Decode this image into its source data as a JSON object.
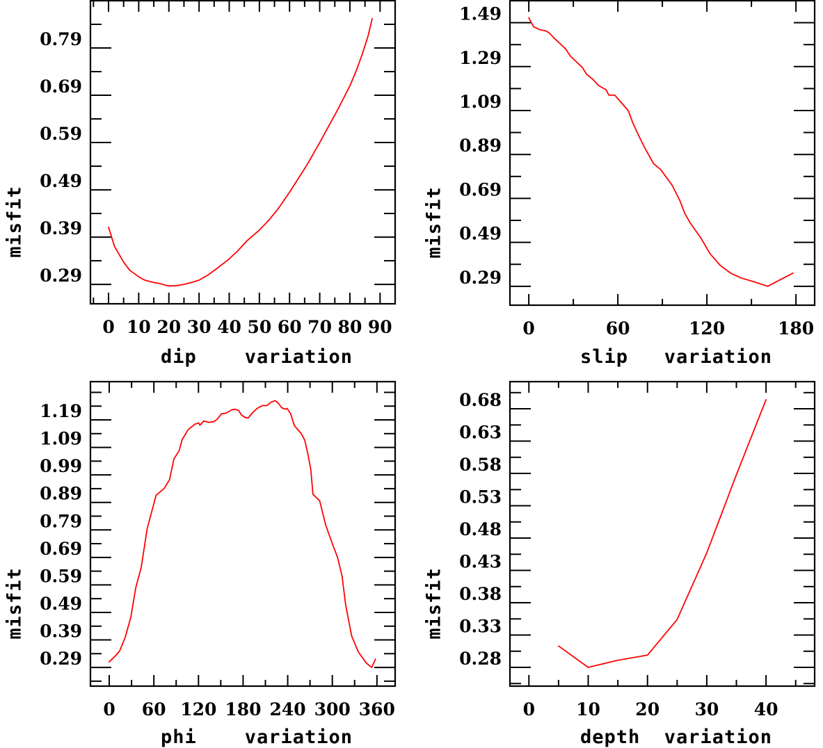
{
  "figure": {
    "line_color": "#ff0000",
    "axis_color": "#000000"
  },
  "chart_data": [
    {
      "type": "line",
      "panel": "top-left",
      "xlabel": "dip    variation",
      "ylabel": "misfit",
      "xlim": [
        -6.0,
        95.0
      ],
      "ylim": [
        0.249,
        0.89
      ],
      "xticks": [
        0,
        10,
        20,
        30,
        40,
        50,
        60,
        70,
        80,
        90
      ],
      "xtick_labels": [
        "0",
        "10",
        "20",
        "30",
        "40",
        "50",
        "60",
        "70",
        "80",
        "90"
      ],
      "x_minor_step": 5,
      "yticks": [
        0.29,
        0.39,
        0.49,
        0.59,
        0.69,
        0.79
      ],
      "ytick_labels": [
        "0.29",
        "0.39",
        "0.49",
        "0.59",
        "0.69",
        "0.79"
      ],
      "y_minor_step": 0.05,
      "grid": false,
      "series": [
        {
          "name": "dip",
          "x": [
            0,
            2,
            5,
            7,
            10,
            12,
            15,
            17,
            19,
            20,
            22,
            25,
            28,
            30,
            33,
            36,
            40,
            43,
            46,
            50,
            53,
            56,
            60,
            63,
            66,
            70,
            73,
            76,
            80,
            82,
            84,
            86,
            87.4
          ],
          "y": [
            0.411,
            0.37,
            0.337,
            0.32,
            0.306,
            0.299,
            0.294,
            0.292,
            0.288,
            0.287,
            0.287,
            0.29,
            0.295,
            0.299,
            0.31,
            0.324,
            0.344,
            0.362,
            0.383,
            0.405,
            0.425,
            0.448,
            0.485,
            0.515,
            0.545,
            0.59,
            0.625,
            0.66,
            0.71,
            0.74,
            0.775,
            0.815,
            0.852
          ]
        }
      ]
    },
    {
      "type": "line",
      "panel": "top-right",
      "xlabel": "slip   variation",
      "ylabel": "misfit",
      "xlim": [
        -12.7,
        192.6
      ],
      "ylim": [
        0.204,
        1.59
      ],
      "xticks": [
        0,
        60,
        120,
        180
      ],
      "xtick_labels": [
        "0",
        "60",
        "120",
        "180"
      ],
      "x_minor_step": 30,
      "yticks": [
        0.29,
        0.49,
        0.69,
        0.89,
        1.09,
        1.29,
        1.49
      ],
      "ytick_labels": [
        "0.29",
        "0.49",
        "0.69",
        "0.89",
        "1.09",
        "1.29",
        "1.49"
      ],
      "y_minor_step": 0.1,
      "grid": false,
      "series": [
        {
          "name": "slip",
          "x": [
            0,
            3.3,
            7.5,
            11.7,
            14,
            17,
            21,
            25,
            28,
            32,
            36,
            39,
            43,
            47,
            52,
            54,
            58,
            62,
            67,
            70,
            74,
            78,
            84,
            89,
            96.6,
            102,
            105,
            109,
            116,
            122,
            129,
            136,
            143,
            151,
            161,
            170,
            178
          ],
          "y": [
            1.512,
            1.471,
            1.458,
            1.452,
            1.442,
            1.42,
            1.395,
            1.369,
            1.338,
            1.312,
            1.287,
            1.255,
            1.233,
            1.204,
            1.185,
            1.16,
            1.16,
            1.128,
            1.09,
            1.036,
            0.976,
            0.922,
            0.849,
            0.82,
            0.75,
            0.677,
            0.623,
            0.576,
            0.509,
            0.439,
            0.385,
            0.35,
            0.328,
            0.312,
            0.29,
            0.322,
            0.35
          ]
        }
      ]
    },
    {
      "type": "line",
      "panel": "bottom-left",
      "xlabel": "phi    variation",
      "ylabel": "misfit",
      "xlim": [
        -25.3,
        384.5
      ],
      "ylim": [
        0.222,
        1.329
      ],
      "xticks": [
        0,
        60,
        120,
        180,
        240,
        300,
        360
      ],
      "xtick_labels": [
        "0",
        "60",
        "120",
        "180",
        "240",
        "300",
        "360"
      ],
      "x_minor_step": 30,
      "yticks": [
        0.29,
        0.39,
        0.49,
        0.59,
        0.69,
        0.79,
        0.89,
        0.99,
        1.09,
        1.19
      ],
      "ytick_labels": [
        "0.29",
        "0.39",
        "0.49",
        "0.59",
        "0.69",
        "0.79",
        "0.89",
        "0.99",
        "1.09",
        "1.19"
      ],
      "y_minor_step": 0.05,
      "grid": false,
      "series": [
        {
          "name": "phi",
          "x": [
            0,
            7.5,
            14,
            21.5,
            29,
            35.5,
            43,
            51,
            63,
            74,
            81,
            87,
            94,
            98,
            106,
            115,
            120,
            122,
            127,
            134,
            141,
            145,
            151,
            157,
            165,
            169,
            174,
            178,
            184,
            187,
            192,
            199,
            206,
            212,
            218,
            223,
            227,
            232,
            237,
            239,
            244,
            249,
            253,
            258,
            263,
            267,
            271,
            274,
            283,
            291,
            300,
            307,
            313,
            318,
            326,
            335,
            346,
            353,
            358
          ],
          "y": [
            0.31,
            0.33,
            0.35,
            0.4,
            0.472,
            0.578,
            0.654,
            0.795,
            0.916,
            0.941,
            0.972,
            1.048,
            1.078,
            1.118,
            1.154,
            1.174,
            1.179,
            1.171,
            1.186,
            1.181,
            1.184,
            1.192,
            1.212,
            1.214,
            1.227,
            1.229,
            1.224,
            1.207,
            1.197,
            1.197,
            1.214,
            1.232,
            1.242,
            1.242,
            1.255,
            1.26,
            1.252,
            1.234,
            1.229,
            1.232,
            1.212,
            1.169,
            1.156,
            1.141,
            1.116,
            1.068,
            1.01,
            0.919,
            0.896,
            0.808,
            0.74,
            0.69,
            0.623,
            0.517,
            0.404,
            0.346,
            0.305,
            0.29,
            0.32
          ]
        }
      ]
    },
    {
      "type": "line",
      "panel": "bottom-right",
      "xlabel": "depth  variation",
      "ylabel": "misfit",
      "xlim": [
        -3.2,
        48.2
      ],
      "ylim": [
        0.251,
        0.722
      ],
      "xticks": [
        0,
        10,
        20,
        30,
        40
      ],
      "xtick_labels": [
        "0",
        "10",
        "20",
        "30",
        "40"
      ],
      "x_minor_step": 5,
      "yticks": [
        0.28,
        0.33,
        0.38,
        0.43,
        0.48,
        0.53,
        0.58,
        0.63,
        0.68
      ],
      "ytick_labels": [
        "0.28",
        "0.33",
        "0.38",
        "0.43",
        "0.48",
        "0.53",
        "0.58",
        "0.63",
        "0.68"
      ],
      "y_minor_step": 0.025,
      "grid": false,
      "series": [
        {
          "name": "depth",
          "x": [
            5,
            10,
            15,
            20,
            25,
            30,
            35,
            40
          ],
          "y": [
            0.313,
            0.28,
            0.291,
            0.299,
            0.354,
            0.457,
            0.578,
            0.694
          ]
        }
      ]
    }
  ]
}
